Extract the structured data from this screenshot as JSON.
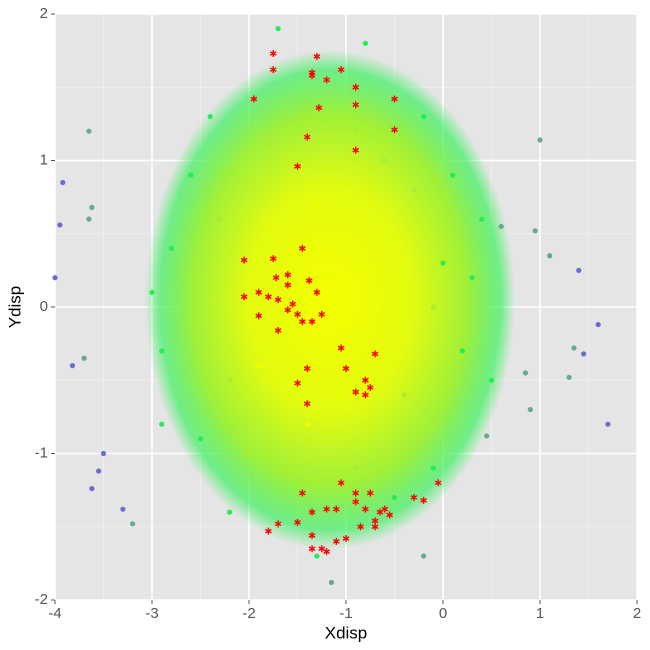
{
  "chart_data": {
    "type": "scatter",
    "x_label": "Xdisp",
    "y_label": "Ydisp",
    "xlim": [
      -4,
      2
    ],
    "ylim": [
      -2,
      2
    ],
    "xticks": [
      -4,
      -3,
      -2,
      -1,
      0,
      1,
      2
    ],
    "yticks": [
      -2,
      -1,
      0,
      1,
      2
    ],
    "grid": true,
    "series": [
      {
        "color": "#ecff00",
        "marker": "circle",
        "x": [
          -1.2,
          -1.5,
          -1.0,
          -1.6,
          -1.3,
          -1.1,
          -1.8,
          -0.8,
          -1.4,
          -1.9
        ],
        "values": [
          0.2,
          0.5,
          -0.2,
          -0.3,
          0.7,
          -0.6,
          0.1,
          0.3,
          -0.8,
          -0.4
        ]
      },
      {
        "color": "#aaee33",
        "marker": "circle",
        "x": [
          -2.3,
          -2.2,
          -0.3,
          -0.4,
          -1.8,
          -0.9,
          -1.6,
          -0.9,
          -2.5,
          -0.1,
          -2.0,
          -0.6
        ],
        "values": [
          0.6,
          -0.5,
          0.8,
          -0.6,
          1.1,
          1.2,
          -1.1,
          -1.1,
          0.1,
          0.0,
          -1.0,
          1.0
        ]
      },
      {
        "color": "#22ee55",
        "marker": "circle",
        "x": [
          -2.8,
          -2.9,
          -2.6,
          -2.5,
          0.3,
          0.2,
          0.4,
          0.1,
          -0.2,
          -2.2,
          -0.5,
          -1.7,
          -0.8,
          -3.0,
          0.5,
          -2.4,
          -1.3,
          -2.9,
          -0.1,
          0.0
        ],
        "values": [
          0.4,
          -0.3,
          0.9,
          -0.9,
          0.2,
          -0.3,
          0.6,
          0.9,
          1.3,
          -1.4,
          -1.3,
          1.9,
          1.8,
          0.1,
          -0.5,
          1.3,
          -1.7,
          -0.8,
          -1.1,
          0.3
        ]
      },
      {
        "color": "#66aa88",
        "marker": "circle",
        "x": [
          -3.65,
          -3.62,
          -3.65,
          -3.2,
          -3.7,
          1.0,
          0.95,
          1.1,
          1.35,
          1.3,
          0.85,
          0.9,
          0.6,
          0.45,
          -0.2,
          -1.15
        ],
        "values": [
          1.2,
          0.68,
          0.6,
          -1.48,
          -0.35,
          1.14,
          0.52,
          0.35,
          -0.28,
          -0.48,
          -0.45,
          -0.7,
          0.55,
          -0.88,
          -1.7,
          -1.88
        ]
      },
      {
        "color": "#6b6bd0",
        "marker": "circle",
        "x": [
          -3.92,
          -3.95,
          -4.0,
          -3.62,
          -3.55,
          -3.82,
          -3.5,
          1.4,
          1.6,
          1.7,
          1.45,
          -3.3
        ],
        "values": [
          0.85,
          0.56,
          0.2,
          -1.24,
          -1.12,
          -0.4,
          -1.0,
          0.25,
          -0.12,
          -0.8,
          -0.32,
          -1.38
        ]
      },
      {
        "color": "#ff0000",
        "marker": "asterisk",
        "x": [
          -1.75,
          -1.75,
          -1.3,
          -1.35,
          -1.35,
          -1.05,
          -1.2,
          -0.9,
          -0.9,
          -1.95,
          -1.28,
          -0.5,
          -0.5,
          -1.4,
          -0.9,
          -1.5,
          -2.05,
          -1.9,
          -2.05,
          -1.8,
          -1.75,
          -1.72,
          -1.6,
          -1.45,
          -1.38,
          -1.3,
          -1.55,
          -1.5,
          -1.45,
          -1.6,
          -1.7,
          -1.9,
          -1.6,
          -1.25,
          -1.7,
          -1.35,
          -1.05,
          -0.7,
          -1.5,
          -1.4,
          -1.0,
          -0.8,
          -0.75,
          -0.8,
          -0.9,
          -1.4,
          -1.45,
          -1.35,
          -1.2,
          -1.35,
          -1.25,
          -1.2,
          -1.1,
          -1.0,
          -1.1,
          -1.05,
          -0.9,
          -0.9,
          -0.8,
          -0.75,
          -0.7,
          -0.65,
          -0.6,
          -0.55,
          -0.85,
          -0.7,
          -0.3,
          -0.2,
          -0.05,
          -1.8,
          -1.7,
          -1.5,
          -1.35
        ],
        "values": [
          1.73,
          1.62,
          1.71,
          1.6,
          1.58,
          1.62,
          1.55,
          1.5,
          1.38,
          1.42,
          1.36,
          1.42,
          1.21,
          1.16,
          1.07,
          0.96,
          0.32,
          0.1,
          0.07,
          0.07,
          0.33,
          0.2,
          0.22,
          0.4,
          0.18,
          0.1,
          0.02,
          -0.05,
          -0.1,
          0.15,
          0.05,
          -0.06,
          -0.02,
          -0.05,
          -0.16,
          -0.1,
          -0.28,
          -0.32,
          -0.52,
          -0.42,
          -0.42,
          -0.5,
          -0.55,
          -0.6,
          -0.58,
          -0.66,
          -1.27,
          -1.4,
          -1.38,
          -1.56,
          -1.65,
          -1.67,
          -1.6,
          -1.58,
          -1.38,
          -1.2,
          -1.27,
          -1.33,
          -1.38,
          -1.27,
          -1.46,
          -1.4,
          -1.38,
          -1.42,
          -1.5,
          -1.5,
          -1.3,
          -1.32,
          -1.2,
          -1.53,
          -1.48,
          -1.47,
          -1.65
        ]
      }
    ]
  }
}
